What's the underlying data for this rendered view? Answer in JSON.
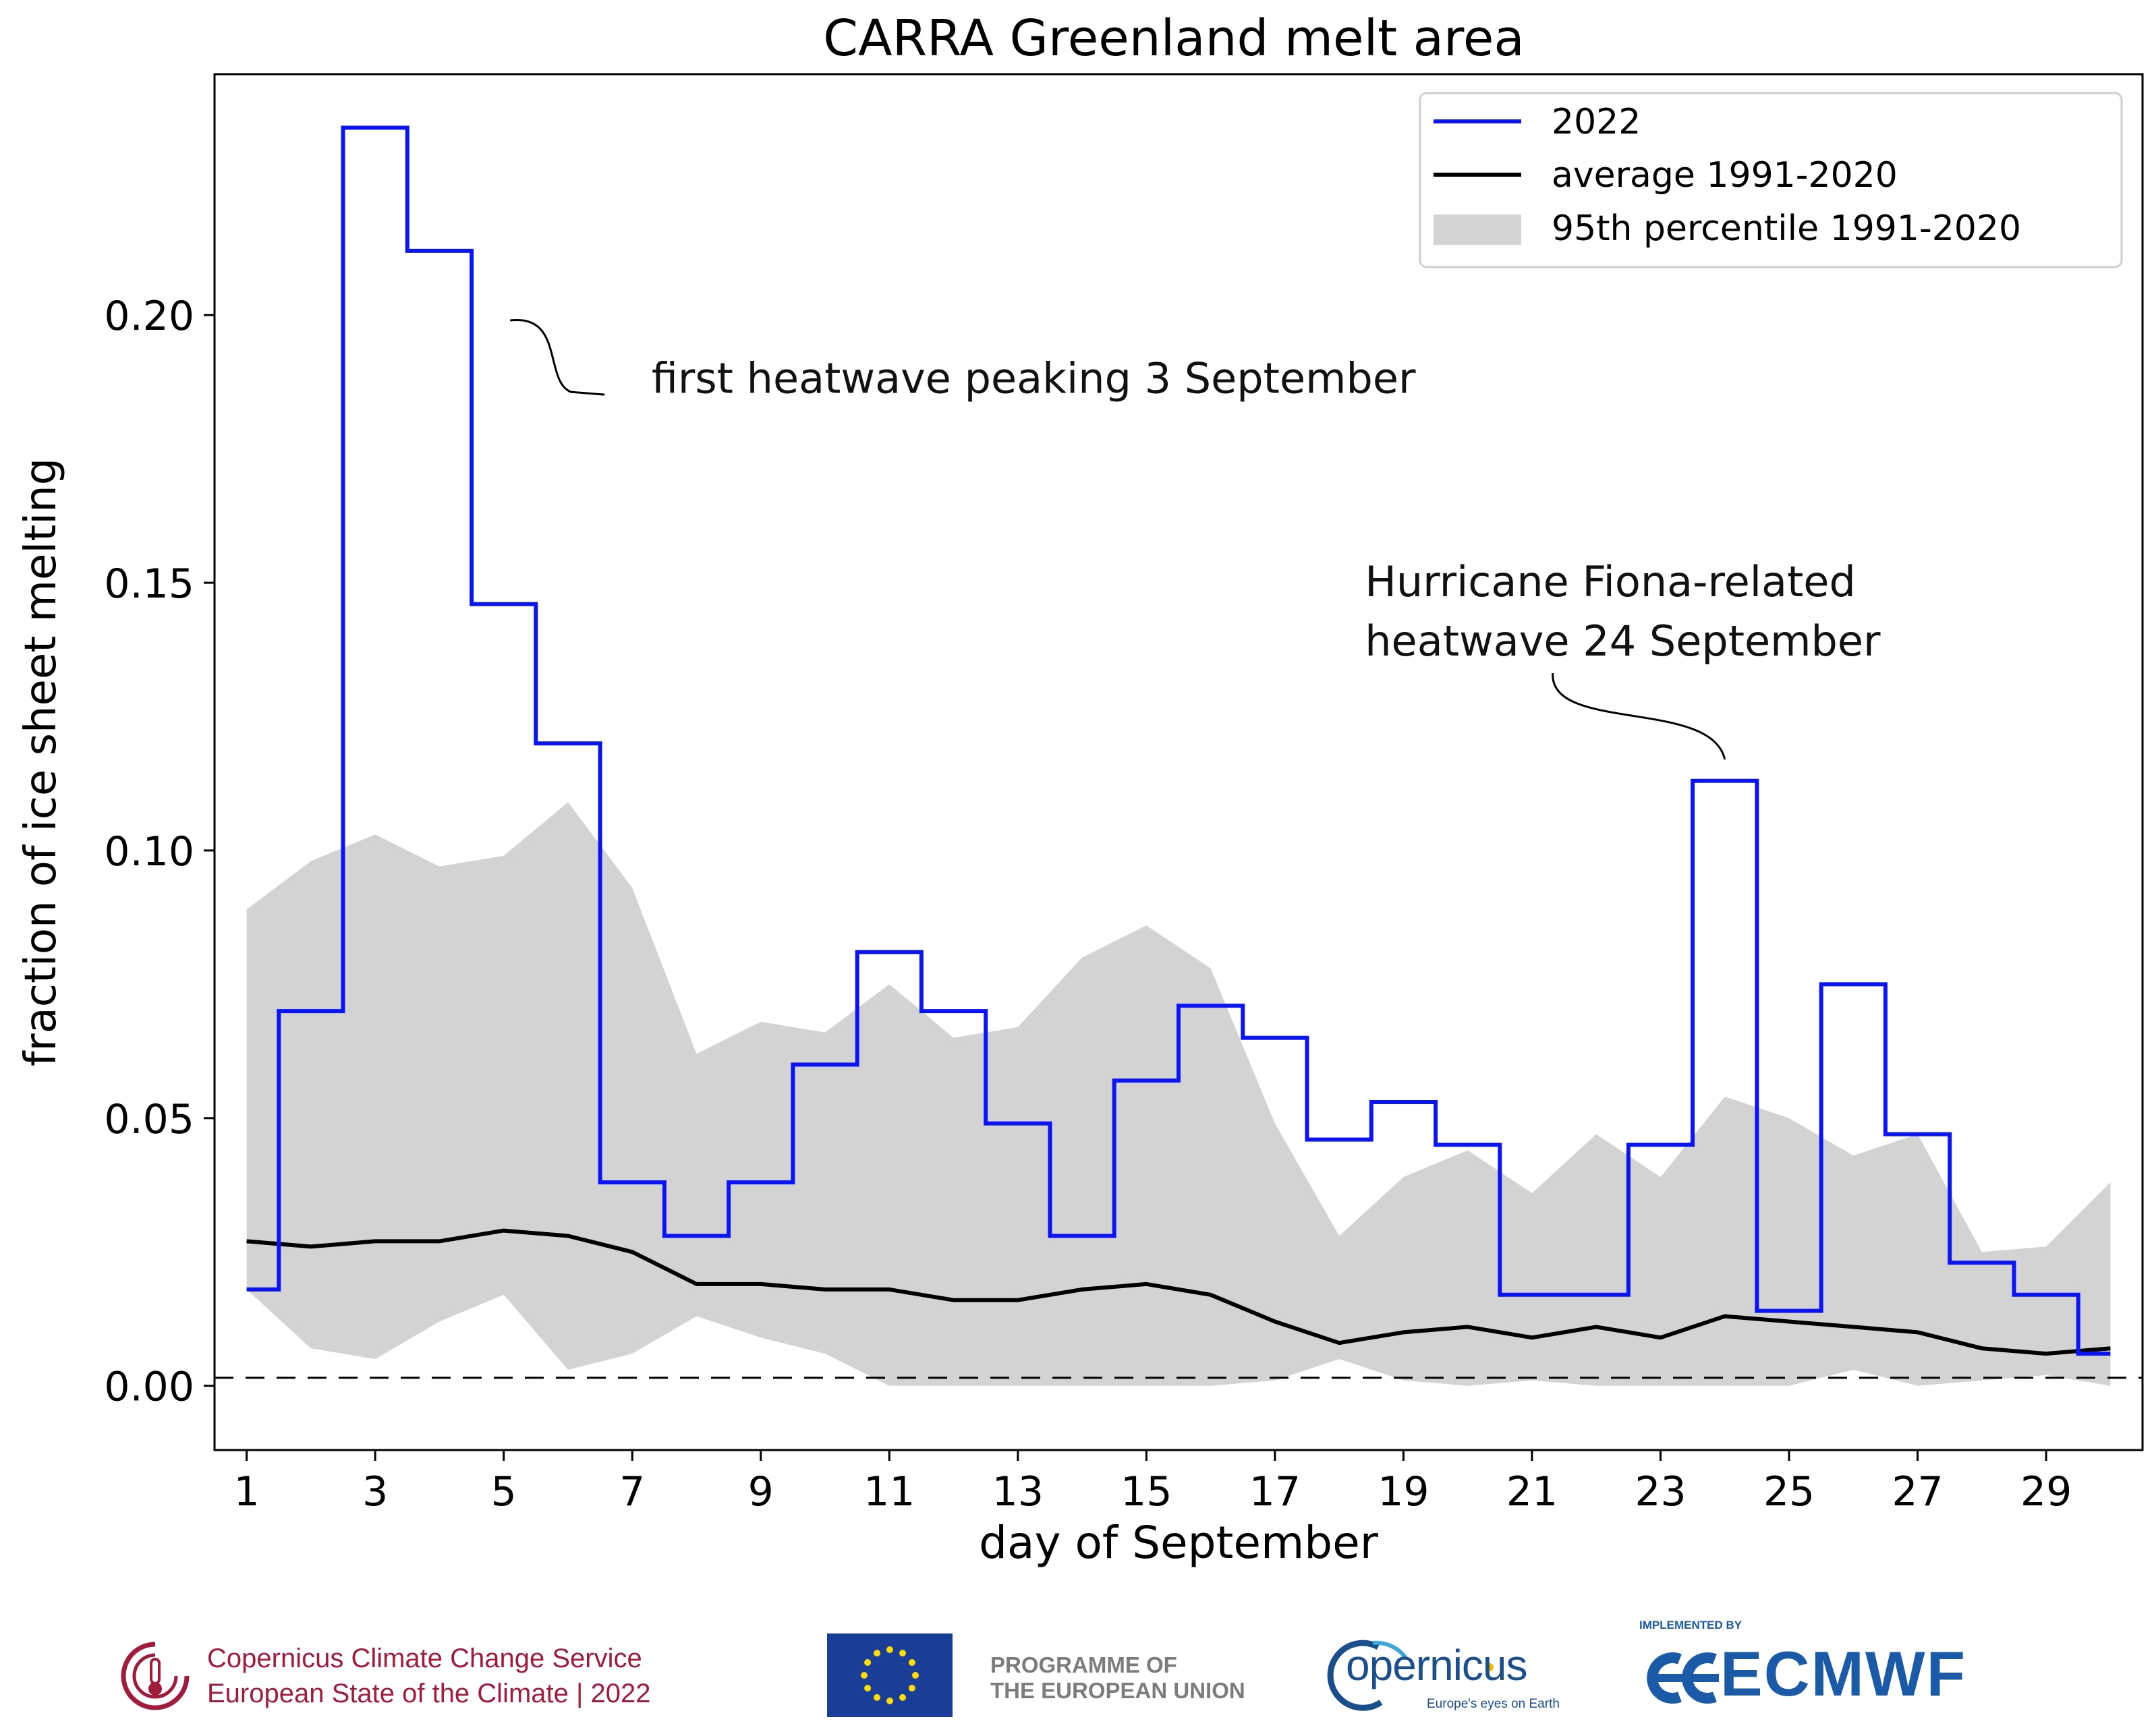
{
  "chart_data": {
    "type": "line",
    "title": "CARRA Greenland melt area",
    "xlabel": "day of September",
    "ylabel": "fraction of ice sheet melting",
    "xlim": [
      0.5,
      30.5
    ],
    "ylim": [
      -0.012,
      0.245
    ],
    "x_ticks": [
      1,
      3,
      5,
      7,
      9,
      11,
      13,
      15,
      17,
      19,
      21,
      23,
      25,
      27,
      29
    ],
    "x_tick_labels": [
      "1",
      "3",
      "5",
      "7",
      "9",
      "11",
      "13",
      "15",
      "17",
      "19",
      "21",
      "23",
      "25",
      "27",
      "29"
    ],
    "y_ticks": [
      0.0,
      0.05,
      0.1,
      0.15,
      0.2
    ],
    "y_tick_labels": [
      "0.00",
      "0.05",
      "0.10",
      "0.15",
      "0.20"
    ],
    "days": [
      1,
      2,
      3,
      4,
      5,
      6,
      7,
      8,
      9,
      10,
      11,
      12,
      13,
      14,
      15,
      16,
      17,
      18,
      19,
      20,
      21,
      22,
      23,
      24,
      25,
      26,
      27,
      28,
      29,
      30
    ],
    "series": [
      {
        "name": "2022",
        "style": "step-mid",
        "color": "#0a14f5",
        "values": [
          0.018,
          0.07,
          0.235,
          0.212,
          0.146,
          0.12,
          0.038,
          0.028,
          0.038,
          0.06,
          0.081,
          0.07,
          0.049,
          0.028,
          0.057,
          0.071,
          0.065,
          0.046,
          0.053,
          0.045,
          0.017,
          0.017,
          0.045,
          0.113,
          0.014,
          0.075,
          0.047,
          0.023,
          0.017,
          0.006
        ]
      },
      {
        "name": "average 1991-2020",
        "style": "line",
        "color": "#000000",
        "values": [
          0.027,
          0.026,
          0.027,
          0.027,
          0.029,
          0.028,
          0.025,
          0.019,
          0.019,
          0.018,
          0.018,
          0.016,
          0.016,
          0.018,
          0.019,
          0.017,
          0.012,
          0.008,
          0.01,
          0.011,
          0.009,
          0.011,
          0.009,
          0.013,
          0.012,
          0.011,
          0.01,
          0.007,
          0.006,
          0.007
        ]
      },
      {
        "name": "95th percentile 1991-2020",
        "style": "band",
        "color": "#d3d3d3",
        "lower": [
          0.018,
          0.007,
          0.005,
          0.012,
          0.017,
          0.003,
          0.006,
          0.013,
          0.009,
          0.006,
          0.0,
          0.0,
          0.0,
          0.0,
          0.0,
          0.0,
          0.001,
          0.005,
          0.001,
          0.0,
          0.001,
          0.0,
          0.0,
          0.0,
          0.0,
          0.003,
          0.0,
          0.001,
          0.002,
          0.0
        ],
        "upper": [
          0.089,
          0.098,
          0.103,
          0.097,
          0.099,
          0.109,
          0.093,
          0.062,
          0.068,
          0.066,
          0.075,
          0.065,
          0.067,
          0.08,
          0.086,
          0.078,
          0.049,
          0.028,
          0.039,
          0.044,
          0.036,
          0.047,
          0.039,
          0.054,
          0.05,
          0.043,
          0.047,
          0.025,
          0.026,
          0.038
        ]
      }
    ],
    "reference_line": {
      "y": 0.0015,
      "style": "dashed",
      "color": "#000000"
    },
    "legend": {
      "position": "top-right",
      "entries": [
        "2022",
        "average 1991-2020",
        "95th percentile 1991-2020"
      ]
    },
    "annotations": [
      {
        "lines": [
          "first heatwave peaking 3 September"
        ],
        "x": 7.3,
        "y": 0.186,
        "arrow_to_x": 5.1,
        "arrow_to_y": 0.199
      },
      {
        "lines": [
          "Hurricane Fiona-related",
          "heatwave 24 September"
        ],
        "x": 18.4,
        "y": 0.15,
        "arrow_to_x": 24.0,
        "arrow_to_y": 0.117
      }
    ]
  },
  "footer": {
    "c3s_line1": "Copernicus Climate Change Service",
    "c3s_line2": "European State of the Climate | 2022",
    "eu_line1": "PROGRAMME OF",
    "eu_line2": "THE EUROPEAN UNION",
    "copernicus_name": "opernicus",
    "copernicus_tagline": "Europe's eyes on Earth",
    "ecmwf_implemented_by": "IMPLEMENTED BY",
    "ecmwf_name": "ECMWF",
    "colors": {
      "c3s": "#a01c3c",
      "eu_blue": "#1a3d98",
      "eu_star": "#ffdd00",
      "copernicus": "#1a4f8c",
      "ecmwf": "#1a5aa6"
    }
  }
}
